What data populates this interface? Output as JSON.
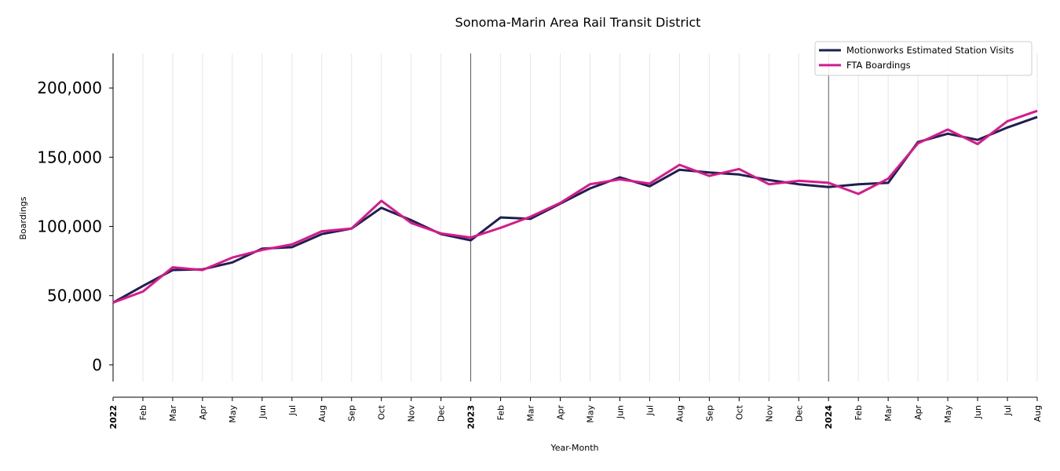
{
  "chart_data": {
    "type": "line",
    "title": "Sonoma-Marin Area Rail Transit District",
    "xlabel": "Year-Month",
    "ylabel": "Boardings",
    "ylim": [
      -12000,
      225000
    ],
    "yticks": [
      0,
      50000,
      100000,
      150000,
      200000
    ],
    "ytick_labels": [
      "0",
      "50,000",
      "100,000",
      "150,000",
      "200,000"
    ],
    "x_tick_labels": [
      "2022",
      "Feb",
      "Mar",
      "Apr",
      "May",
      "Jun",
      "Jul",
      "Aug",
      "Sep",
      "Oct",
      "Nov",
      "Dec",
      "2023",
      "Feb",
      "Mar",
      "Apr",
      "May",
      "Jun",
      "Jul",
      "Aug",
      "Sep",
      "Oct",
      "Nov",
      "Dec",
      "2024",
      "Feb",
      "Mar",
      "Apr",
      "May",
      "Jun",
      "Jul",
      "Aug"
    ],
    "x_year_ticks": [
      0,
      12,
      24
    ],
    "grid": "vertical",
    "legend_position": "top-right",
    "series": [
      {
        "name": "Motionworks Estimated Station Visits",
        "color": "#1f1f4f",
        "values": [
          45000,
          57000,
          68500,
          69000,
          74000,
          84000,
          85000,
          94500,
          98500,
          113500,
          104500,
          94500,
          90000,
          106500,
          105500,
          116500,
          127500,
          135500,
          129000,
          141000,
          139000,
          137500,
          133500,
          130500,
          128500,
          130500,
          131500,
          161000,
          167000,
          162500,
          171500,
          179000
        ]
      },
      {
        "name": "FTA Boardings",
        "color": "#d41c8c",
        "values": [
          45000,
          53000,
          70500,
          68500,
          77500,
          83000,
          87000,
          96500,
          98500,
          118500,
          102500,
          95000,
          92000,
          99000,
          107000,
          117000,
          130500,
          134000,
          131000,
          144500,
          136500,
          141500,
          130500,
          133000,
          131500,
          123500,
          134500,
          160000,
          170000,
          159500,
          176000,
          183500
        ]
      }
    ]
  }
}
